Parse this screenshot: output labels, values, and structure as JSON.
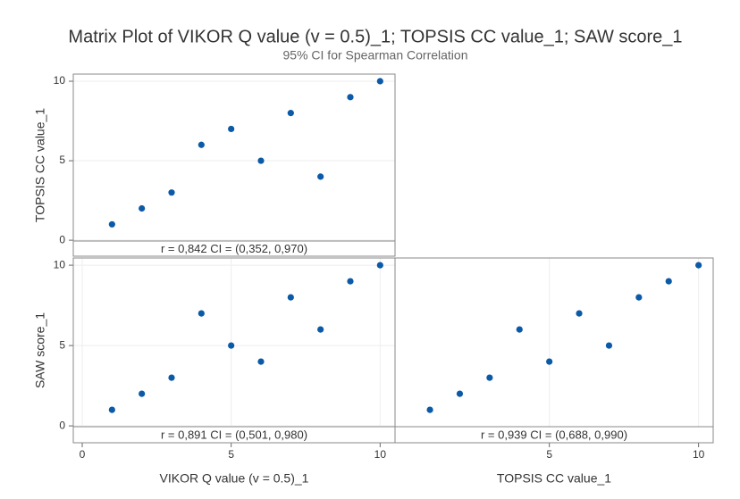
{
  "title": "Matrix Plot of VIKOR Q value (v = 0.5)_1; TOPSIS CC value_1; SAW score_1",
  "subtitle": "95% CI for Spearman Correlation",
  "chart_data": [
    {
      "type": "scatter",
      "ylabel": "TOPSIS CC value_1",
      "annotation": "r = 0,842  CI = (0,352, 0,970)",
      "x": [
        1,
        2,
        3,
        4,
        5,
        6,
        7,
        8,
        9,
        10
      ],
      "values": [
        1,
        2,
        3,
        6,
        7,
        5,
        8,
        4,
        9,
        10
      ],
      "color": "#0b5aa8",
      "xlim": [
        -0.3,
        10.5
      ],
      "ylim": [
        -0.05,
        10.45
      ],
      "yticks": [
        0,
        5,
        10
      ],
      "grid": true
    },
    {
      "type": "scatter",
      "xlabel": "VIKOR Q value (v = 0.5)_1",
      "ylabel": "SAW score_1",
      "annotation": "r = 0,891  CI = (0,501, 0,980)",
      "x": [
        1,
        2,
        3,
        4,
        5,
        6,
        7,
        8,
        9,
        10
      ],
      "values": [
        1,
        2,
        3,
        7,
        5,
        4,
        8,
        6,
        9,
        10
      ],
      "color": "#0b5aa8",
      "xlim": [
        -0.3,
        10.5
      ],
      "ylim": [
        -0.05,
        10.45
      ],
      "xticks": [
        0,
        5,
        10
      ],
      "yticks": [
        0,
        5,
        10
      ],
      "grid": true
    },
    {
      "type": "scatter",
      "xlabel": "TOPSIS CC value_1",
      "annotation": "r = 0,939  CI = (0,688, 0,990)",
      "x": [
        1,
        2,
        3,
        6,
        7,
        5,
        8,
        4,
        9,
        10
      ],
      "values": [
        1,
        2,
        3,
        7,
        5,
        4,
        8,
        6,
        9,
        10
      ],
      "color": "#0b5aa8",
      "xlim": [
        -0.17,
        10.49
      ],
      "ylim": [
        -0.05,
        10.45
      ],
      "xticks": [
        5,
        10
      ],
      "grid": true
    }
  ]
}
